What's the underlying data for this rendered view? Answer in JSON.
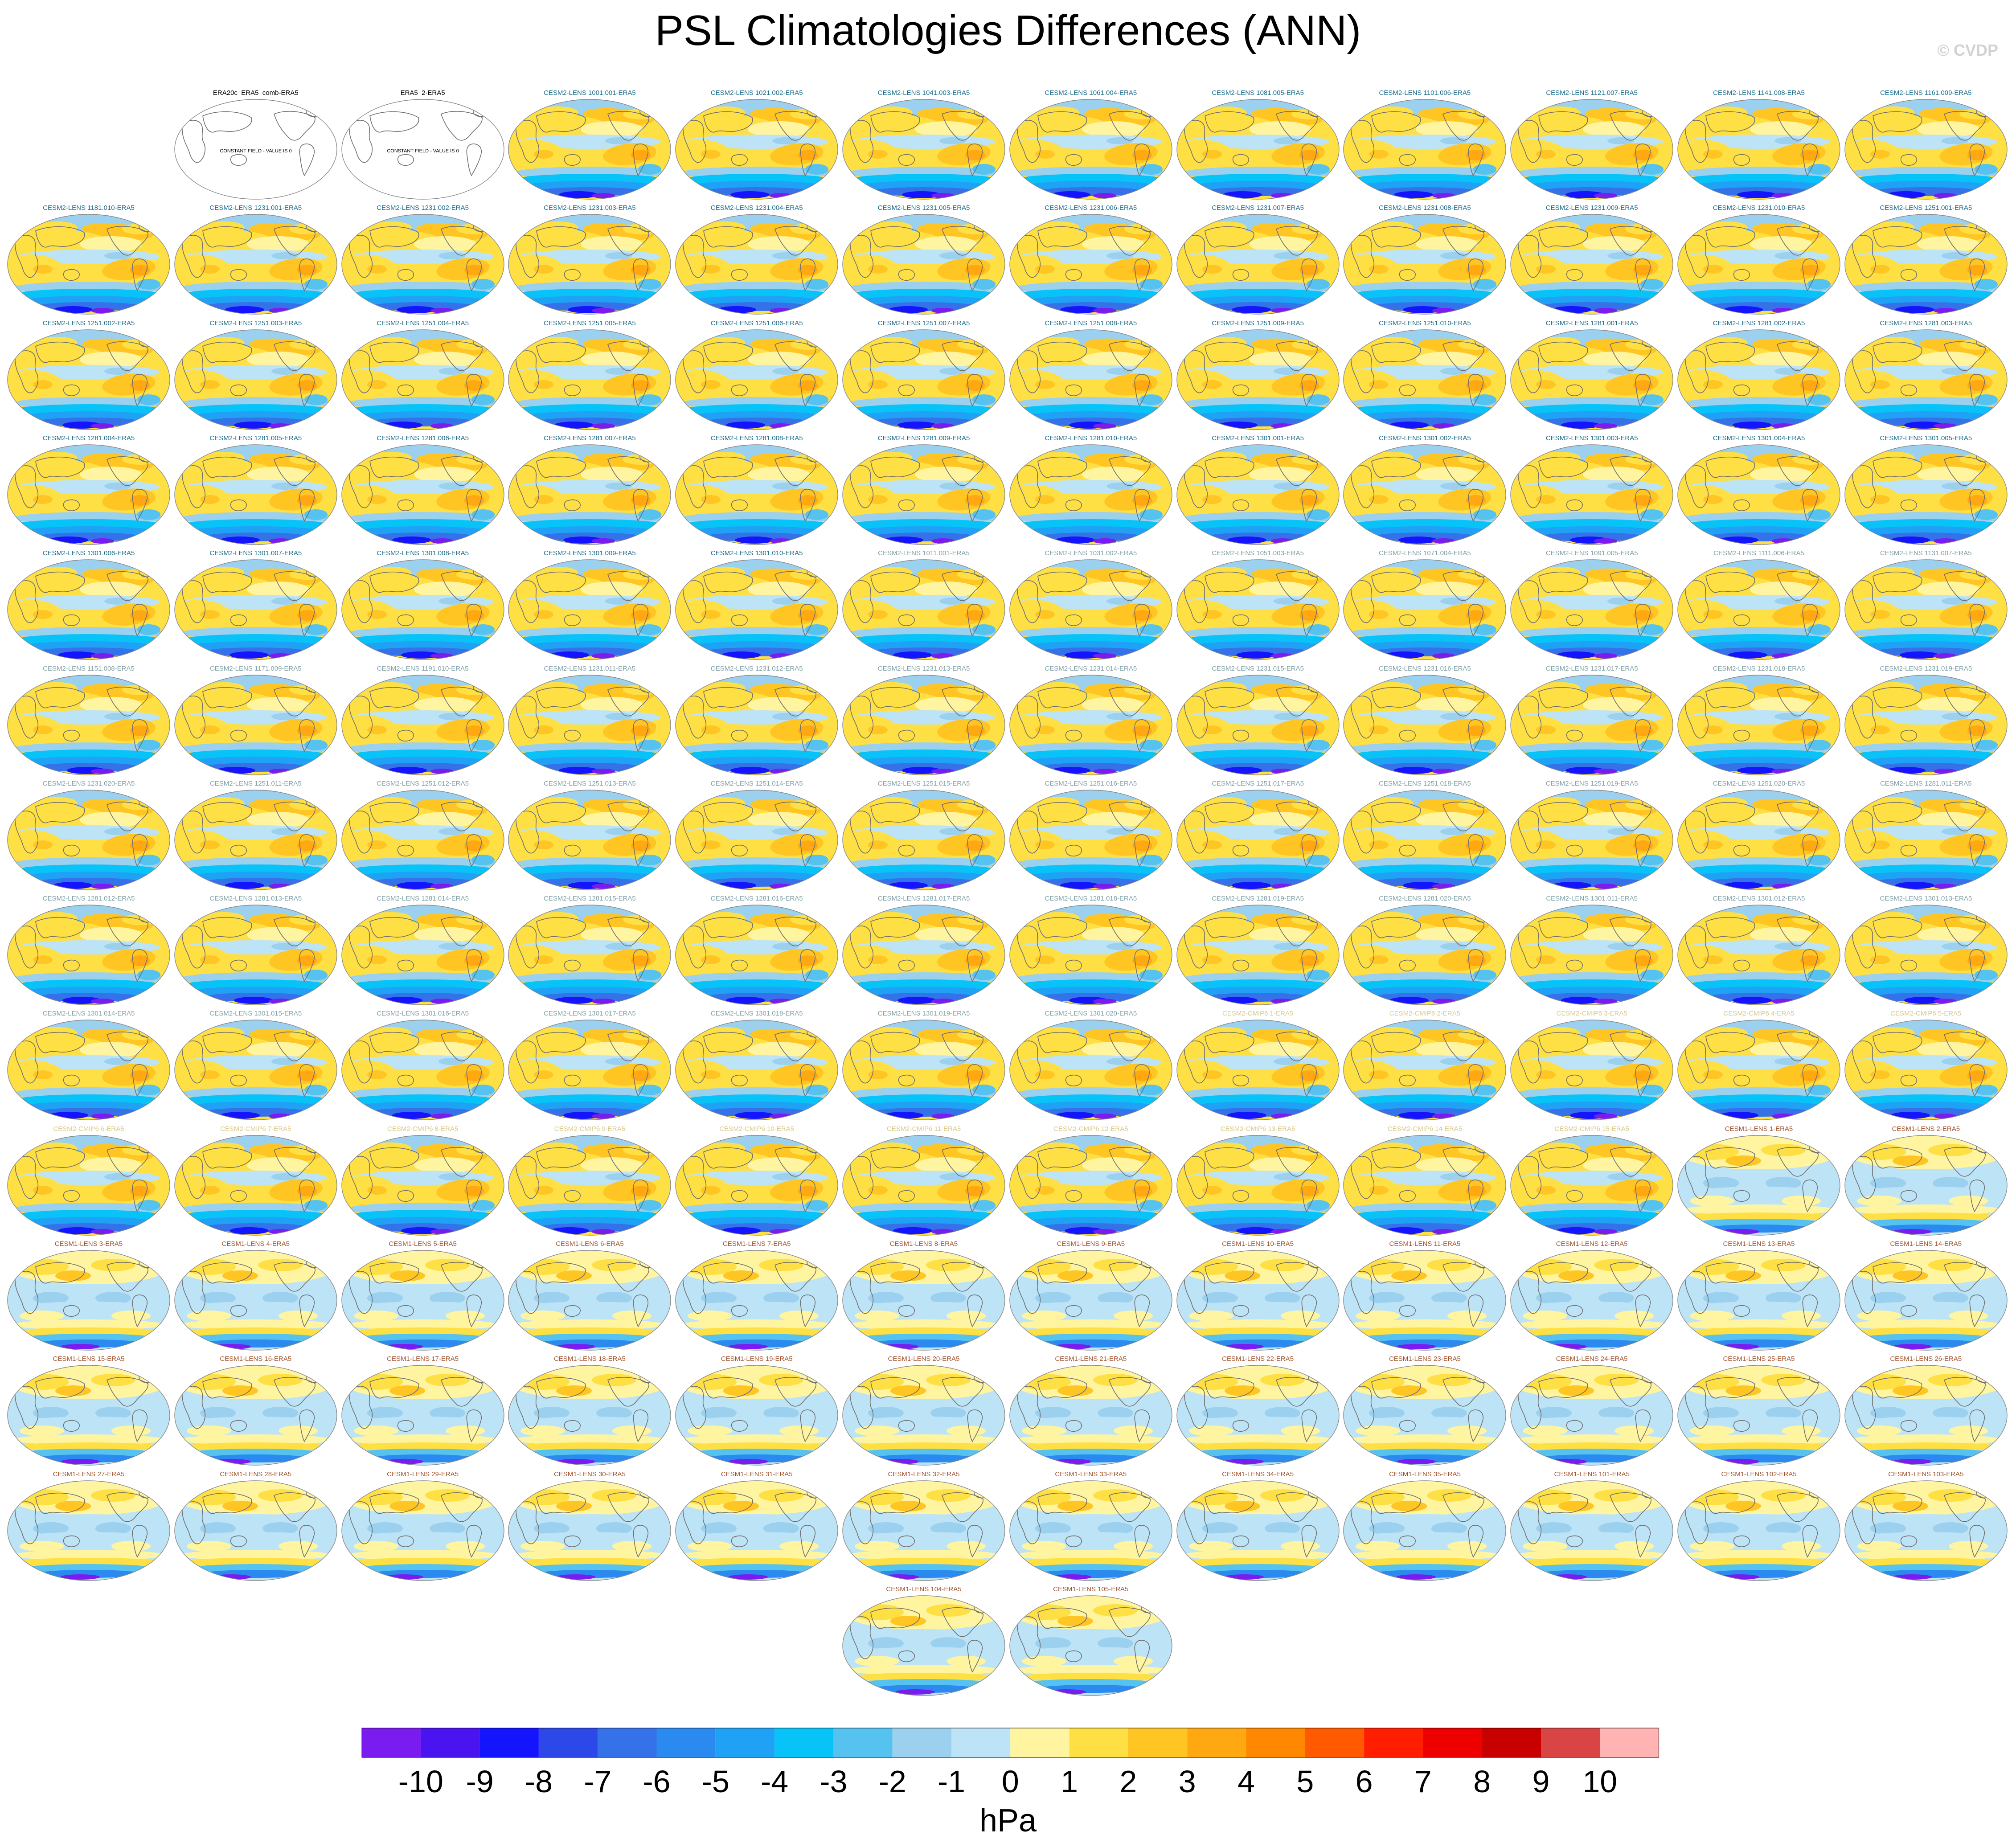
{
  "title": "PSL Climatologies Differences (ANN)",
  "watermark": "© CVDP",
  "units": "hPa",
  "chart_data": {
    "type": "heatmap",
    "title": "PSL Climatologies Differences (ANN)",
    "projection": "global map (robinson-like), one map per panel",
    "colorbar": {
      "label": "hPa",
      "levels": [
        -10,
        -9,
        -8,
        -7,
        -6,
        -5,
        -4,
        -3,
        -2,
        -1,
        0,
        1,
        2,
        3,
        4,
        5,
        6,
        7,
        8,
        9,
        10
      ],
      "colors": [
        "#7a1cf0",
        "#4a14f0",
        "#1414ff",
        "#2d48e8",
        "#3571e8",
        "#2a8aef",
        "#1fa2f5",
        "#07c3f8",
        "#55c2f0",
        "#9bd0ef",
        "#bde3f6",
        "#fff5a0",
        "#ffe044",
        "#ffc522",
        "#ffa812",
        "#ff8800",
        "#ff5a00",
        "#ff1e00",
        "#ee0000",
        "#c80000",
        "#d94444",
        "#ffb3b3"
      ]
    },
    "panel_groups": [
      {
        "model": "obs",
        "color": "#000000",
        "pattern": "constant"
      },
      {
        "model": "CESM2-LENS",
        "color": "#1a6b8a",
        "pattern": "cesm2"
      },
      {
        "model": "CESM2-LENS",
        "color": "#7f9fa6",
        "pattern": "cesm2"
      },
      {
        "model": "CESM2-CMIP6",
        "color": "#d8c88a",
        "pattern": "cesm2"
      },
      {
        "model": "CESM1-LENS",
        "color": "#a0522d",
        "pattern": "cesm1"
      }
    ],
    "constant_field_note": "CONSTANT FIELD - VALUE IS 0",
    "panels": [
      {
        "row": 0,
        "col": 1,
        "title": "ERA20c_ERA5_comb-ERA5",
        "group": 0
      },
      {
        "row": 0,
        "col": 2,
        "title": "ERA5_2-ERA5",
        "group": 0
      },
      {
        "row": 0,
        "col": 3,
        "title": "CESM2-LENS 1001.001-ERA5",
        "group": 1
      },
      {
        "row": 0,
        "col": 4,
        "title": "CESM2-LENS 1021.002-ERA5",
        "group": 1
      },
      {
        "row": 0,
        "col": 5,
        "title": "CESM2-LENS 1041.003-ERA5",
        "group": 1
      },
      {
        "row": 0,
        "col": 6,
        "title": "CESM2-LENS 1061.004-ERA5",
        "group": 1
      },
      {
        "row": 0,
        "col": 7,
        "title": "CESM2-LENS 1081.005-ERA5",
        "group": 1
      },
      {
        "row": 0,
        "col": 8,
        "title": "CESM2-LENS 1101.006-ERA5",
        "group": 1
      },
      {
        "row": 0,
        "col": 9,
        "title": "CESM2-LENS 1121.007-ERA5",
        "group": 1
      },
      {
        "row": 0,
        "col": 10,
        "title": "CESM2-LENS 1141.008-ERA5",
        "group": 1
      },
      {
        "row": 0,
        "col": 11,
        "title": "CESM2-LENS 1161.009-ERA5",
        "group": 1
      },
      {
        "row": 1,
        "col": 0,
        "title": "CESM2-LENS 1181.010-ERA5",
        "group": 1
      },
      {
        "row": 1,
        "col": 1,
        "title": "CESM2-LENS 1231.001-ERA5",
        "group": 1
      },
      {
        "row": 1,
        "col": 2,
        "title": "CESM2-LENS 1231.002-ERA5",
        "group": 1
      },
      {
        "row": 1,
        "col": 3,
        "title": "CESM2-LENS 1231.003-ERA5",
        "group": 1
      },
      {
        "row": 1,
        "col": 4,
        "title": "CESM2-LENS 1231.004-ERA5",
        "group": 1
      },
      {
        "row": 1,
        "col": 5,
        "title": "CESM2-LENS 1231.005-ERA5",
        "group": 1
      },
      {
        "row": 1,
        "col": 6,
        "title": "CESM2-LENS 1231.006-ERA5",
        "group": 1
      },
      {
        "row": 1,
        "col": 7,
        "title": "CESM2-LENS 1231.007-ERA5",
        "group": 1
      },
      {
        "row": 1,
        "col": 8,
        "title": "CESM2-LENS 1231.008-ERA5",
        "group": 1
      },
      {
        "row": 1,
        "col": 9,
        "title": "CESM2-LENS 1231.009-ERA5",
        "group": 1
      },
      {
        "row": 1,
        "col": 10,
        "title": "CESM2-LENS 1231.010-ERA5",
        "group": 1
      },
      {
        "row": 1,
        "col": 11,
        "title": "CESM2-LENS 1251.001-ERA5",
        "group": 1
      },
      {
        "row": 2,
        "col": 0,
        "title": "CESM2-LENS 1251.002-ERA5",
        "group": 1
      },
      {
        "row": 2,
        "col": 1,
        "title": "CESM2-LENS 1251.003-ERA5",
        "group": 1
      },
      {
        "row": 2,
        "col": 2,
        "title": "CESM2-LENS 1251.004-ERA5",
        "group": 1
      },
      {
        "row": 2,
        "col": 3,
        "title": "CESM2-LENS 1251.005-ERA5",
        "group": 1
      },
      {
        "row": 2,
        "col": 4,
        "title": "CESM2-LENS 1251.006-ERA5",
        "group": 1
      },
      {
        "row": 2,
        "col": 5,
        "title": "CESM2-LENS 1251.007-ERA5",
        "group": 1
      },
      {
        "row": 2,
        "col": 6,
        "title": "CESM2-LENS 1251.008-ERA5",
        "group": 1
      },
      {
        "row": 2,
        "col": 7,
        "title": "CESM2-LENS 1251.009-ERA5",
        "group": 1
      },
      {
        "row": 2,
        "col": 8,
        "title": "CESM2-LENS 1251.010-ERA5",
        "group": 1
      },
      {
        "row": 2,
        "col": 9,
        "title": "CESM2-LENS 1281.001-ERA5",
        "group": 1
      },
      {
        "row": 2,
        "col": 10,
        "title": "CESM2-LENS 1281.002-ERA5",
        "group": 1
      },
      {
        "row": 2,
        "col": 11,
        "title": "CESM2-LENS 1281.003-ERA5",
        "group": 1
      },
      {
        "row": 3,
        "col": 0,
        "title": "CESM2-LENS 1281.004-ERA5",
        "group": 1
      },
      {
        "row": 3,
        "col": 1,
        "title": "CESM2-LENS 1281.005-ERA5",
        "group": 1
      },
      {
        "row": 3,
        "col": 2,
        "title": "CESM2-LENS 1281.006-ERA5",
        "group": 1
      },
      {
        "row": 3,
        "col": 3,
        "title": "CESM2-LENS 1281.007-ERA5",
        "group": 1
      },
      {
        "row": 3,
        "col": 4,
        "title": "CESM2-LENS 1281.008-ERA5",
        "group": 1
      },
      {
        "row": 3,
        "col": 5,
        "title": "CESM2-LENS 1281.009-ERA5",
        "group": 1
      },
      {
        "row": 3,
        "col": 6,
        "title": "CESM2-LENS 1281.010-ERA5",
        "group": 1
      },
      {
        "row": 3,
        "col": 7,
        "title": "CESM2-LENS 1301.001-ERA5",
        "group": 1
      },
      {
        "row": 3,
        "col": 8,
        "title": "CESM2-LENS 1301.002-ERA5",
        "group": 1
      },
      {
        "row": 3,
        "col": 9,
        "title": "CESM2-LENS 1301.003-ERA5",
        "group": 1
      },
      {
        "row": 3,
        "col": 10,
        "title": "CESM2-LENS 1301.004-ERA5",
        "group": 1
      },
      {
        "row": 3,
        "col": 11,
        "title": "CESM2-LENS 1301.005-ERA5",
        "group": 1
      },
      {
        "row": 4,
        "col": 0,
        "title": "CESM2-LENS 1301.006-ERA5",
        "group": 1
      },
      {
        "row": 4,
        "col": 1,
        "title": "CESM2-LENS 1301.007-ERA5",
        "group": 1
      },
      {
        "row": 4,
        "col": 2,
        "title": "CESM2-LENS 1301.008-ERA5",
        "group": 1
      },
      {
        "row": 4,
        "col": 3,
        "title": "CESM2-LENS 1301.009-ERA5",
        "group": 1
      },
      {
        "row": 4,
        "col": 4,
        "title": "CESM2-LENS 1301.010-ERA5",
        "group": 1
      },
      {
        "row": 4,
        "col": 5,
        "title": "CESM2-LENS 1011.001-ERA5",
        "group": 2
      },
      {
        "row": 4,
        "col": 6,
        "title": "CESM2-LENS 1031.002-ERA5",
        "group": 2
      },
      {
        "row": 4,
        "col": 7,
        "title": "CESM2-LENS 1051.003-ERA5",
        "group": 2
      },
      {
        "row": 4,
        "col": 8,
        "title": "CESM2-LENS 1071.004-ERA5",
        "group": 2
      },
      {
        "row": 4,
        "col": 9,
        "title": "CESM2-LENS 1091.005-ERA5",
        "group": 2
      },
      {
        "row": 4,
        "col": 10,
        "title": "CESM2-LENS 1111.006-ERA5",
        "group": 2
      },
      {
        "row": 4,
        "col": 11,
        "title": "CESM2-LENS 1131.007-ERA5",
        "group": 2
      },
      {
        "row": 5,
        "col": 0,
        "title": "CESM2-LENS 1151.008-ERA5",
        "group": 2
      },
      {
        "row": 5,
        "col": 1,
        "title": "CESM2-LENS 1171.009-ERA5",
        "group": 2
      },
      {
        "row": 5,
        "col": 2,
        "title": "CESM2-LENS 1191.010-ERA5",
        "group": 2
      },
      {
        "row": 5,
        "col": 3,
        "title": "CESM2-LENS 1231.011-ERA5",
        "group": 2
      },
      {
        "row": 5,
        "col": 4,
        "title": "CESM2-LENS 1231.012-ERA5",
        "group": 2
      },
      {
        "row": 5,
        "col": 5,
        "title": "CESM2-LENS 1231.013-ERA5",
        "group": 2
      },
      {
        "row": 5,
        "col": 6,
        "title": "CESM2-LENS 1231.014-ERA5",
        "group": 2
      },
      {
        "row": 5,
        "col": 7,
        "title": "CESM2-LENS 1231.015-ERA5",
        "group": 2
      },
      {
        "row": 5,
        "col": 8,
        "title": "CESM2-LENS 1231.016-ERA5",
        "group": 2
      },
      {
        "row": 5,
        "col": 9,
        "title": "CESM2-LENS 1231.017-ERA5",
        "group": 2
      },
      {
        "row": 5,
        "col": 10,
        "title": "CESM2-LENS 1231.018-ERA5",
        "group": 2
      },
      {
        "row": 5,
        "col": 11,
        "title": "CESM2-LENS 1231.019-ERA5",
        "group": 2
      },
      {
        "row": 6,
        "col": 0,
        "title": "CESM2-LENS 1231.020-ERA5",
        "group": 2
      },
      {
        "row": 6,
        "col": 1,
        "title": "CESM2-LENS 1251.011-ERA5",
        "group": 2
      },
      {
        "row": 6,
        "col": 2,
        "title": "CESM2-LENS 1251.012-ERA5",
        "group": 2
      },
      {
        "row": 6,
        "col": 3,
        "title": "CESM2-LENS 1251.013-ERA5",
        "group": 2
      },
      {
        "row": 6,
        "col": 4,
        "title": "CESM2-LENS 1251.014-ERA5",
        "group": 2
      },
      {
        "row": 6,
        "col": 5,
        "title": "CESM2-LENS 1251.015-ERA5",
        "group": 2
      },
      {
        "row": 6,
        "col": 6,
        "title": "CESM2-LENS 1251.016-ERA5",
        "group": 2
      },
      {
        "row": 6,
        "col": 7,
        "title": "CESM2-LENS 1251.017-ERA5",
        "group": 2
      },
      {
        "row": 6,
        "col": 8,
        "title": "CESM2-LENS 1251.018-ERA5",
        "group": 2
      },
      {
        "row": 6,
        "col": 9,
        "title": "CESM2-LENS 1251.019-ERA5",
        "group": 2
      },
      {
        "row": 6,
        "col": 10,
        "title": "CESM2-LENS 1251.020-ERA5",
        "group": 2
      },
      {
        "row": 6,
        "col": 11,
        "title": "CESM2-LENS 1281.011-ERA5",
        "group": 2
      },
      {
        "row": 7,
        "col": 0,
        "title": "CESM2-LENS 1281.012-ERA5",
        "group": 2
      },
      {
        "row": 7,
        "col": 1,
        "title": "CESM2-LENS 1281.013-ERA5",
        "group": 2
      },
      {
        "row": 7,
        "col": 2,
        "title": "CESM2-LENS 1281.014-ERA5",
        "group": 2
      },
      {
        "row": 7,
        "col": 3,
        "title": "CESM2-LENS 1281.015-ERA5",
        "group": 2
      },
      {
        "row": 7,
        "col": 4,
        "title": "CESM2-LENS 1281.016-ERA5",
        "group": 2
      },
      {
        "row": 7,
        "col": 5,
        "title": "CESM2-LENS 1281.017-ERA5",
        "group": 2
      },
      {
        "row": 7,
        "col": 6,
        "title": "CESM2-LENS 1281.018-ERA5",
        "group": 2
      },
      {
        "row": 7,
        "col": 7,
        "title": "CESM2-LENS 1281.019-ERA5",
        "group": 2
      },
      {
        "row": 7,
        "col": 8,
        "title": "CESM2-LENS 1281.020-ERA5",
        "group": 2
      },
      {
        "row": 7,
        "col": 9,
        "title": "CESM2-LENS 1301.011-ERA5",
        "group": 2
      },
      {
        "row": 7,
        "col": 10,
        "title": "CESM2-LENS 1301.012-ERA5",
        "group": 2
      },
      {
        "row": 7,
        "col": 11,
        "title": "CESM2-LENS 1301.013-ERA5",
        "group": 2
      },
      {
        "row": 8,
        "col": 0,
        "title": "CESM2-LENS 1301.014-ERA5",
        "group": 2
      },
      {
        "row": 8,
        "col": 1,
        "title": "CESM2-LENS 1301.015-ERA5",
        "group": 2
      },
      {
        "row": 8,
        "col": 2,
        "title": "CESM2-LENS 1301.016-ERA5",
        "group": 2
      },
      {
        "row": 8,
        "col": 3,
        "title": "CESM2-LENS 1301.017-ERA5",
        "group": 2
      },
      {
        "row": 8,
        "col": 4,
        "title": "CESM2-LENS 1301.018-ERA5",
        "group": 2
      },
      {
        "row": 8,
        "col": 5,
        "title": "CESM2-LENS 1301.019-ERA5",
        "group": 2
      },
      {
        "row": 8,
        "col": 6,
        "title": "CESM2-LENS 1301.020-ERA5",
        "group": 2
      },
      {
        "row": 8,
        "col": 7,
        "title": "CESM2-CMIP6 1-ERA5",
        "group": 3
      },
      {
        "row": 8,
        "col": 8,
        "title": "CESM2-CMIP6 2-ERA5",
        "group": 3
      },
      {
        "row": 8,
        "col": 9,
        "title": "CESM2-CMIP6 3-ERA5",
        "group": 3
      },
      {
        "row": 8,
        "col": 10,
        "title": "CESM2-CMIP6 4-ERA5",
        "group": 3
      },
      {
        "row": 8,
        "col": 11,
        "title": "CESM2-CMIP6 5-ERA5",
        "group": 3
      },
      {
        "row": 9,
        "col": 0,
        "title": "CESM2-CMIP6 6-ERA5",
        "group": 3
      },
      {
        "row": 9,
        "col": 1,
        "title": "CESM2-CMIP6 7-ERA5",
        "group": 3
      },
      {
        "row": 9,
        "col": 2,
        "title": "CESM2-CMIP6 8-ERA5",
        "group": 3
      },
      {
        "row": 9,
        "col": 3,
        "title": "CESM2-CMIP6 9-ERA5",
        "group": 3
      },
      {
        "row": 9,
        "col": 4,
        "title": "CESM2-CMIP6 10-ERA5",
        "group": 3
      },
      {
        "row": 9,
        "col": 5,
        "title": "CESM2-CMIP6 11-ERA5",
        "group": 3
      },
      {
        "row": 9,
        "col": 6,
        "title": "CESM2-CMIP6 12-ERA5",
        "group": 3
      },
      {
        "row": 9,
        "col": 7,
        "title": "CESM2-CMIP6 13-ERA5",
        "group": 3
      },
      {
        "row": 9,
        "col": 8,
        "title": "CESM2-CMIP6 14-ERA5",
        "group": 3
      },
      {
        "row": 9,
        "col": 9,
        "title": "CESM2-CMIP6 15-ERA5",
        "group": 3
      },
      {
        "row": 9,
        "col": 10,
        "title": "CESM1-LENS 1-ERA5",
        "group": 4
      },
      {
        "row": 9,
        "col": 11,
        "title": "CESM1-LENS 2-ERA5",
        "group": 4
      },
      {
        "row": 10,
        "col": 0,
        "title": "CESM1-LENS 3-ERA5",
        "group": 4
      },
      {
        "row": 10,
        "col": 1,
        "title": "CESM1-LENS 4-ERA5",
        "group": 4
      },
      {
        "row": 10,
        "col": 2,
        "title": "CESM1-LENS 5-ERA5",
        "group": 4
      },
      {
        "row": 10,
        "col": 3,
        "title": "CESM1-LENS 6-ERA5",
        "group": 4
      },
      {
        "row": 10,
        "col": 4,
        "title": "CESM1-LENS 7-ERA5",
        "group": 4
      },
      {
        "row": 10,
        "col": 5,
        "title": "CESM1-LENS 8-ERA5",
        "group": 4
      },
      {
        "row": 10,
        "col": 6,
        "title": "CESM1-LENS 9-ERA5",
        "group": 4
      },
      {
        "row": 10,
        "col": 7,
        "title": "CESM1-LENS 10-ERA5",
        "group": 4
      },
      {
        "row": 10,
        "col": 8,
        "title": "CESM1-LENS 11-ERA5",
        "group": 4
      },
      {
        "row": 10,
        "col": 9,
        "title": "CESM1-LENS 12-ERA5",
        "group": 4
      },
      {
        "row": 10,
        "col": 10,
        "title": "CESM1-LENS 13-ERA5",
        "group": 4
      },
      {
        "row": 10,
        "col": 11,
        "title": "CESM1-LENS 14-ERA5",
        "group": 4
      },
      {
        "row": 11,
        "col": 0,
        "title": "CESM1-LENS 15-ERA5",
        "group": 4
      },
      {
        "row": 11,
        "col": 1,
        "title": "CESM1-LENS 16-ERA5",
        "group": 4
      },
      {
        "row": 11,
        "col": 2,
        "title": "CESM1-LENS 17-ERA5",
        "group": 4
      },
      {
        "row": 11,
        "col": 3,
        "title": "CESM1-LENS 18-ERA5",
        "group": 4
      },
      {
        "row": 11,
        "col": 4,
        "title": "CESM1-LENS 19-ERA5",
        "group": 4
      },
      {
        "row": 11,
        "col": 5,
        "title": "CESM1-LENS 20-ERA5",
        "group": 4
      },
      {
        "row": 11,
        "col": 6,
        "title": "CESM1-LENS 21-ERA5",
        "group": 4
      },
      {
        "row": 11,
        "col": 7,
        "title": "CESM1-LENS 22-ERA5",
        "group": 4
      },
      {
        "row": 11,
        "col": 8,
        "title": "CESM1-LENS 23-ERA5",
        "group": 4
      },
      {
        "row": 11,
        "col": 9,
        "title": "CESM1-LENS 24-ERA5",
        "group": 4
      },
      {
        "row": 11,
        "col": 10,
        "title": "CESM1-LENS 25-ERA5",
        "group": 4
      },
      {
        "row": 11,
        "col": 11,
        "title": "CESM1-LENS 26-ERA5",
        "group": 4
      },
      {
        "row": 12,
        "col": 0,
        "title": "CESM1-LENS 27-ERA5",
        "group": 4
      },
      {
        "row": 12,
        "col": 1,
        "title": "CESM1-LENS 28-ERA5",
        "group": 4
      },
      {
        "row": 12,
        "col": 2,
        "title": "CESM1-LENS 29-ERA5",
        "group": 4
      },
      {
        "row": 12,
        "col": 3,
        "title": "CESM1-LENS 30-ERA5",
        "group": 4
      },
      {
        "row": 12,
        "col": 4,
        "title": "CESM1-LENS 31-ERA5",
        "group": 4
      },
      {
        "row": 12,
        "col": 5,
        "title": "CESM1-LENS 32-ERA5",
        "group": 4
      },
      {
        "row": 12,
        "col": 6,
        "title": "CESM1-LENS 33-ERA5",
        "group": 4
      },
      {
        "row": 12,
        "col": 7,
        "title": "CESM1-LENS 34-ERA5",
        "group": 4
      },
      {
        "row": 12,
        "col": 8,
        "title": "CESM1-LENS 35-ERA5",
        "group": 4
      },
      {
        "row": 12,
        "col": 9,
        "title": "CESM1-LENS 101-ERA5",
        "group": 4
      },
      {
        "row": 12,
        "col": 10,
        "title": "CESM1-LENS 102-ERA5",
        "group": 4
      },
      {
        "row": 12,
        "col": 11,
        "title": "CESM1-LENS 103-ERA5",
        "group": 4
      },
      {
        "row": 13,
        "col": 5,
        "title": "CESM1-LENS 104-ERA5",
        "group": 4
      },
      {
        "row": 13,
        "col": 6,
        "title": "CESM1-LENS 105-ERA5",
        "group": 4
      }
    ]
  }
}
